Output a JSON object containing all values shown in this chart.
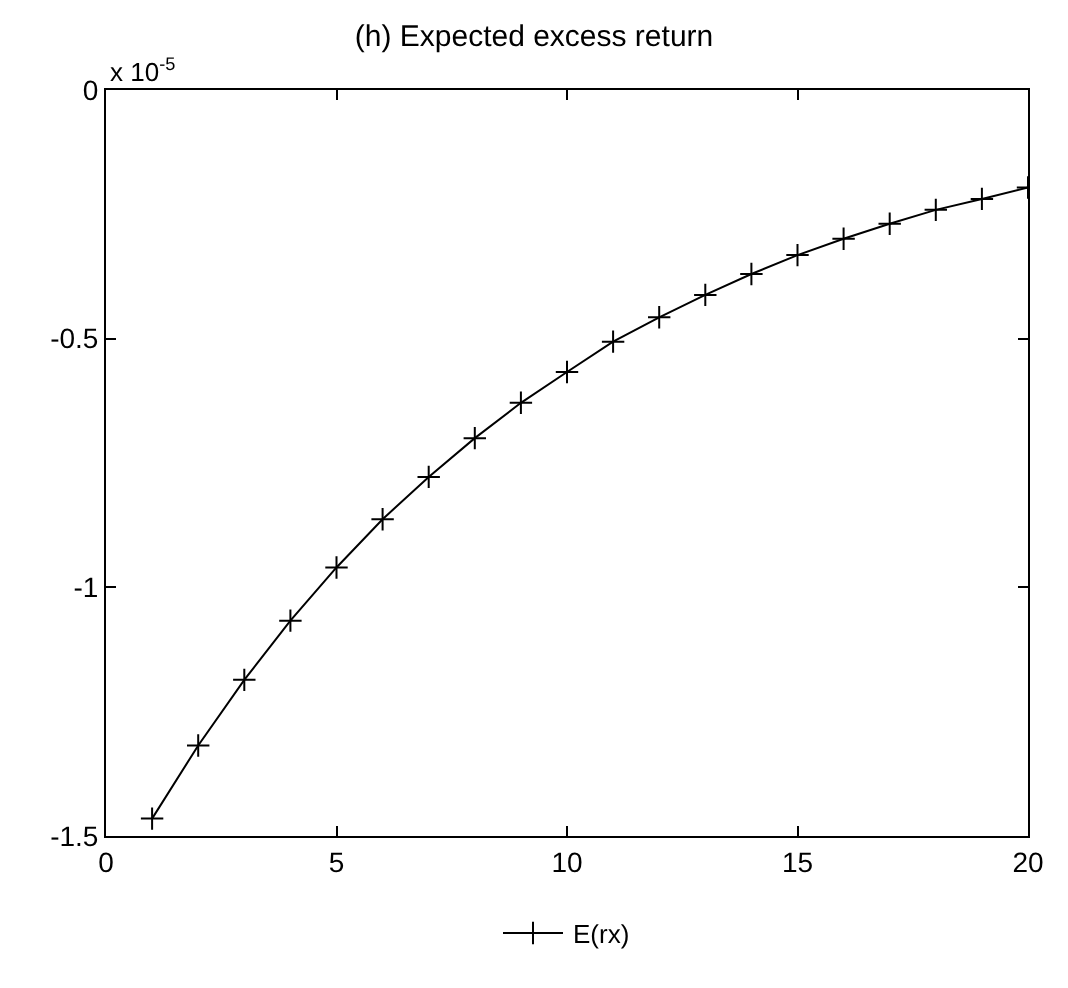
{
  "chart_data": {
    "type": "line",
    "title": "(h) Expected excess return",
    "annotations": [
      "x 10$^{-5}$"
    ],
    "x": [
      1,
      2,
      3,
      4,
      5,
      6,
      7,
      8,
      9,
      10,
      11,
      12,
      13,
      14,
      15,
      16,
      17,
      18,
      19,
      20
    ],
    "series": [
      {
        "name": "E(rx)",
        "color": "#000000",
        "values": [
          -1.465,
          -1.318,
          -1.186,
          -1.067,
          -0.96,
          -0.863,
          -0.778,
          -0.7,
          -0.629,
          -0.567,
          -0.506,
          -0.457,
          -0.412,
          -0.37,
          -0.332,
          -0.299,
          -0.269,
          -0.241,
          -0.219,
          -0.196
        ]
      }
    ],
    "xlim": [
      0,
      20
    ],
    "xticks": [
      0,
      5,
      10,
      15,
      20
    ],
    "ylim": [
      -1.5,
      0
    ],
    "yticks": [
      -1.5,
      -1,
      -0.5,
      0
    ],
    "grid": false,
    "legend": "bottom",
    "marker": "cross",
    "line_style": "solid"
  }
}
